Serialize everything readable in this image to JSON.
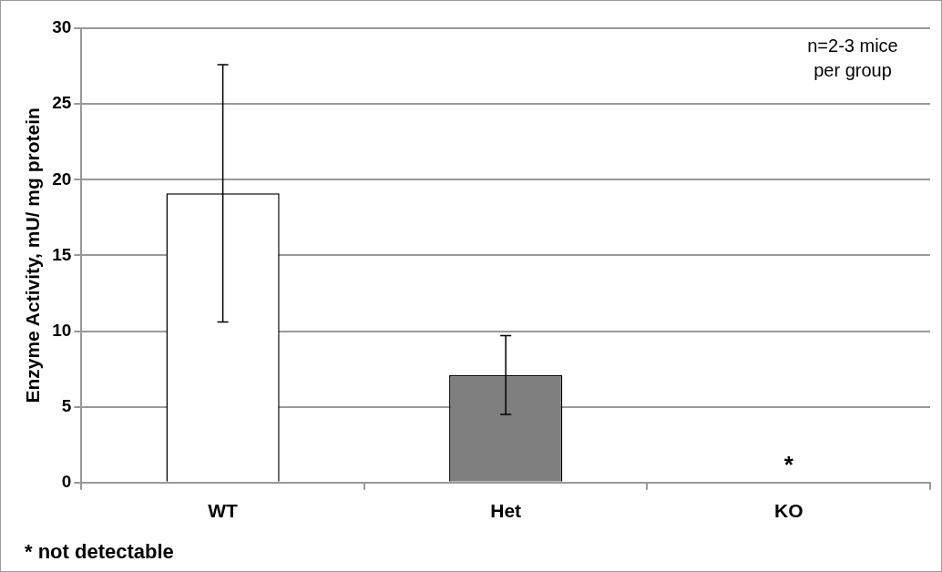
{
  "chart_data": {
    "type": "bar",
    "ylabel": "Enzyme Activity, mU/ mg protein",
    "categories": [
      "WT",
      "Het",
      "KO"
    ],
    "values": [
      19.1,
      7.1,
      null
    ],
    "colors": [
      "#ffffff",
      "#7f7f7f",
      "#ffffff"
    ],
    "errors": [
      8.5,
      2.6,
      null
    ],
    "ylim": [
      0,
      30
    ],
    "yticks": [
      0,
      5,
      10,
      15,
      20,
      25,
      30
    ],
    "grid": "y",
    "annotations": [
      "*",
      "n=2-3 mice per group",
      "* not detectable"
    ]
  }
}
